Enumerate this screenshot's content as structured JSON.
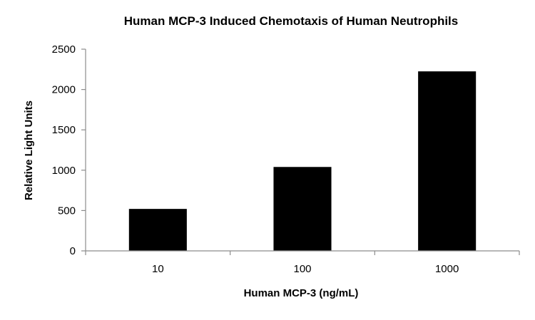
{
  "chart_data": {
    "type": "bar",
    "title": "Human MCP-3 Induced Chemotaxis of Human Neutrophils",
    "xlabel": "Human MCP-3 (ng/mL)",
    "ylabel": "Relative Light Units",
    "categories": [
      "10",
      "100",
      "1000"
    ],
    "values": [
      520,
      1040,
      2225
    ],
    "ylim": [
      0,
      2500
    ],
    "yticks": [
      0,
      500,
      1000,
      1500,
      2000,
      2500
    ],
    "grid": false,
    "legend": "none",
    "colors": {
      "bar": "#000000",
      "axis": "#8c8c8c"
    }
  }
}
